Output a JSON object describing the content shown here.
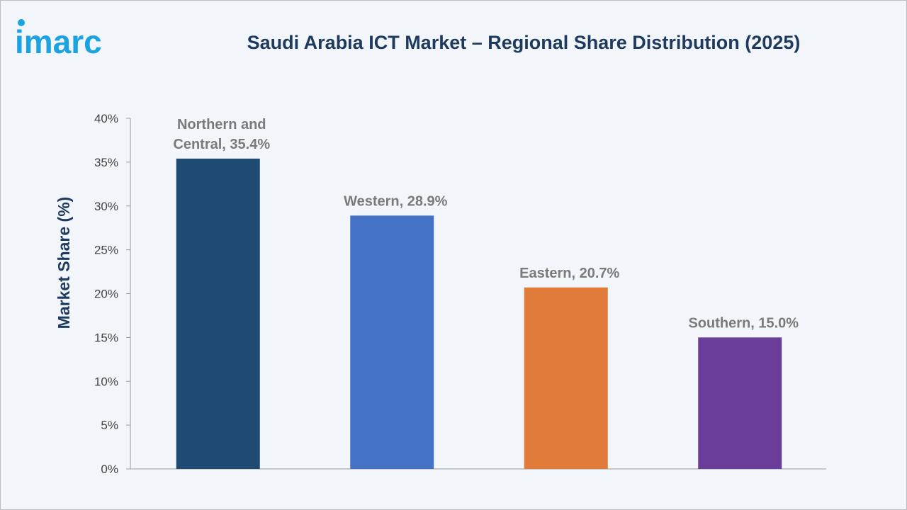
{
  "brand": {
    "logo_text": "imarc",
    "logo_color": "#1aa3e0"
  },
  "chart_data": {
    "type": "bar",
    "title": "Saudi Arabia ICT Market – Regional Share Distribution (2025)",
    "xlabel": "",
    "ylabel": "Market Share (%)",
    "ylim": [
      0,
      40
    ],
    "yticks": [
      0,
      5,
      10,
      15,
      20,
      25,
      30,
      35,
      40
    ],
    "ytick_labels": [
      "0%",
      "5%",
      "10%",
      "15%",
      "20%",
      "25%",
      "30%",
      "35%",
      "40%"
    ],
    "categories": [
      "Northern and Central",
      "Western",
      "Eastern",
      "Southern"
    ],
    "values": [
      35.4,
      28.9,
      20.7,
      15.0
    ],
    "data_labels": [
      [
        "Northern and",
        "Central, 35.4%"
      ],
      [
        "Western, 28.9%"
      ],
      [
        "Eastern, 20.7%"
      ],
      [
        "Southern, 15.0%"
      ]
    ],
    "colors": [
      "#1f4a72",
      "#4472c4",
      "#e07b39",
      "#6a3d9a"
    ],
    "grid": false,
    "legend": "none"
  }
}
